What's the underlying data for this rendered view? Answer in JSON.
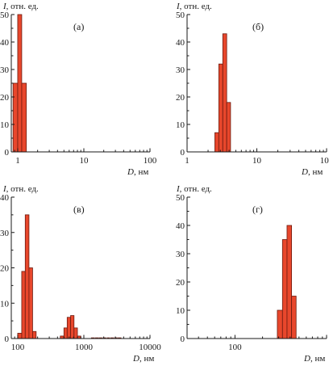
{
  "chart_data": [
    {
      "type": "bar",
      "panel_label": "(а)",
      "ylabel": "I, отн. ед.",
      "ylabel_var": "I",
      "ylabel_rest": ", отн. ед.",
      "xlabel": "D, нм",
      "xlabel_var": "D",
      "xlabel_rest": ", нм",
      "xscale": "log",
      "xlim": [
        0.8,
        100
      ],
      "ylim": [
        0,
        50
      ],
      "yticks": [
        0,
        10,
        20,
        30,
        40,
        50
      ],
      "xticks": [
        {
          "value": 1,
          "label": "1"
        },
        {
          "value": 10,
          "label": "10"
        },
        {
          "value": 100,
          "label": "100"
        }
      ],
      "bars": [
        {
          "x0": 0.85,
          "x1": 1.0,
          "value": 25
        },
        {
          "x0": 1.0,
          "x1": 1.15,
          "value": 50
        },
        {
          "x0": 1.15,
          "x1": 1.35,
          "value": 25
        }
      ]
    },
    {
      "type": "bar",
      "panel_label": "(б)",
      "ylabel": "I, отн. ед.",
      "ylabel_var": "I",
      "ylabel_rest": ", отн. ед.",
      "xlabel": "D, нм",
      "xlabel_var": "D",
      "xlabel_rest": ", нм",
      "xscale": "log",
      "xlim": [
        1,
        100
      ],
      "ylim": [
        0,
        50
      ],
      "yticks": [
        0,
        10,
        20,
        30,
        40,
        50
      ],
      "xticks": [
        {
          "value": 1,
          "label": "1"
        },
        {
          "value": 10,
          "label": "10"
        },
        {
          "value": 100,
          "label": "100"
        }
      ],
      "bars": [
        {
          "x0": 2.5,
          "x1": 2.85,
          "value": 7
        },
        {
          "x0": 2.85,
          "x1": 3.25,
          "value": 32
        },
        {
          "x0": 3.25,
          "x1": 3.7,
          "value": 43
        },
        {
          "x0": 3.7,
          "x1": 4.2,
          "value": 18
        }
      ]
    },
    {
      "type": "bar",
      "panel_label": "(в)",
      "ylabel": "I, отн. ед.",
      "ylabel_var": "I",
      "ylabel_rest": ", отн. ед.",
      "xlabel": "D, нм",
      "xlabel_var": "D",
      "xlabel_rest": ", нм",
      "xscale": "log",
      "xlim": [
        80,
        10000
      ],
      "ylim": [
        0,
        40
      ],
      "yticks": [
        0,
        10,
        20,
        30,
        40
      ],
      "xticks": [
        {
          "value": 100,
          "label": "100"
        },
        {
          "value": 1000,
          "label": "1000"
        },
        {
          "value": 10000,
          "label": "10000"
        }
      ],
      "bars": [
        {
          "x0": 100,
          "x1": 115,
          "value": 1.5
        },
        {
          "x0": 115,
          "x1": 130,
          "value": 19
        },
        {
          "x0": 130,
          "x1": 148,
          "value": 35
        },
        {
          "x0": 148,
          "x1": 168,
          "value": 20
        },
        {
          "x0": 168,
          "x1": 190,
          "value": 2
        },
        {
          "x0": 440,
          "x1": 500,
          "value": 0.7
        },
        {
          "x0": 500,
          "x1": 560,
          "value": 3
        },
        {
          "x0": 560,
          "x1": 630,
          "value": 6
        },
        {
          "x0": 630,
          "x1": 710,
          "value": 6.5
        },
        {
          "x0": 710,
          "x1": 800,
          "value": 3
        },
        {
          "x0": 800,
          "x1": 900,
          "value": 0.7
        },
        {
          "x0": 1300,
          "x1": 1450,
          "value": 0.2
        },
        {
          "x0": 1500,
          "x1": 1650,
          "value": 0.2
        },
        {
          "x0": 1700,
          "x1": 1880,
          "value": 0.2
        },
        {
          "x0": 1950,
          "x1": 2150,
          "value": 0.2
        },
        {
          "x0": 2250,
          "x1": 2450,
          "value": 0.2
        },
        {
          "x0": 2550,
          "x1": 2800,
          "value": 0.2
        },
        {
          "x0": 2900,
          "x1": 3200,
          "value": 0.2
        },
        {
          "x0": 3300,
          "x1": 3650,
          "value": 0.2
        }
      ]
    },
    {
      "type": "bar",
      "panel_label": "(г)",
      "ylabel": "I, отн. ед.",
      "ylabel_var": "I",
      "ylabel_rest": ", отн. ед.",
      "xlabel": "D, нм",
      "xlabel_var": "D",
      "xlabel_rest": ", нм",
      "xscale": "log",
      "xlim": [
        30,
        1000
      ],
      "ylim": [
        0,
        50
      ],
      "yticks": [
        0,
        10,
        20,
        30,
        40,
        50
      ],
      "xticks": [
        {
          "value": 100,
          "label": "100"
        }
      ],
      "bars": [
        {
          "x0": 290,
          "x1": 330,
          "value": 10
        },
        {
          "x0": 330,
          "x1": 370,
          "value": 35
        },
        {
          "x0": 370,
          "x1": 415,
          "value": 40
        },
        {
          "x0": 415,
          "x1": 465,
          "value": 15
        }
      ]
    }
  ]
}
